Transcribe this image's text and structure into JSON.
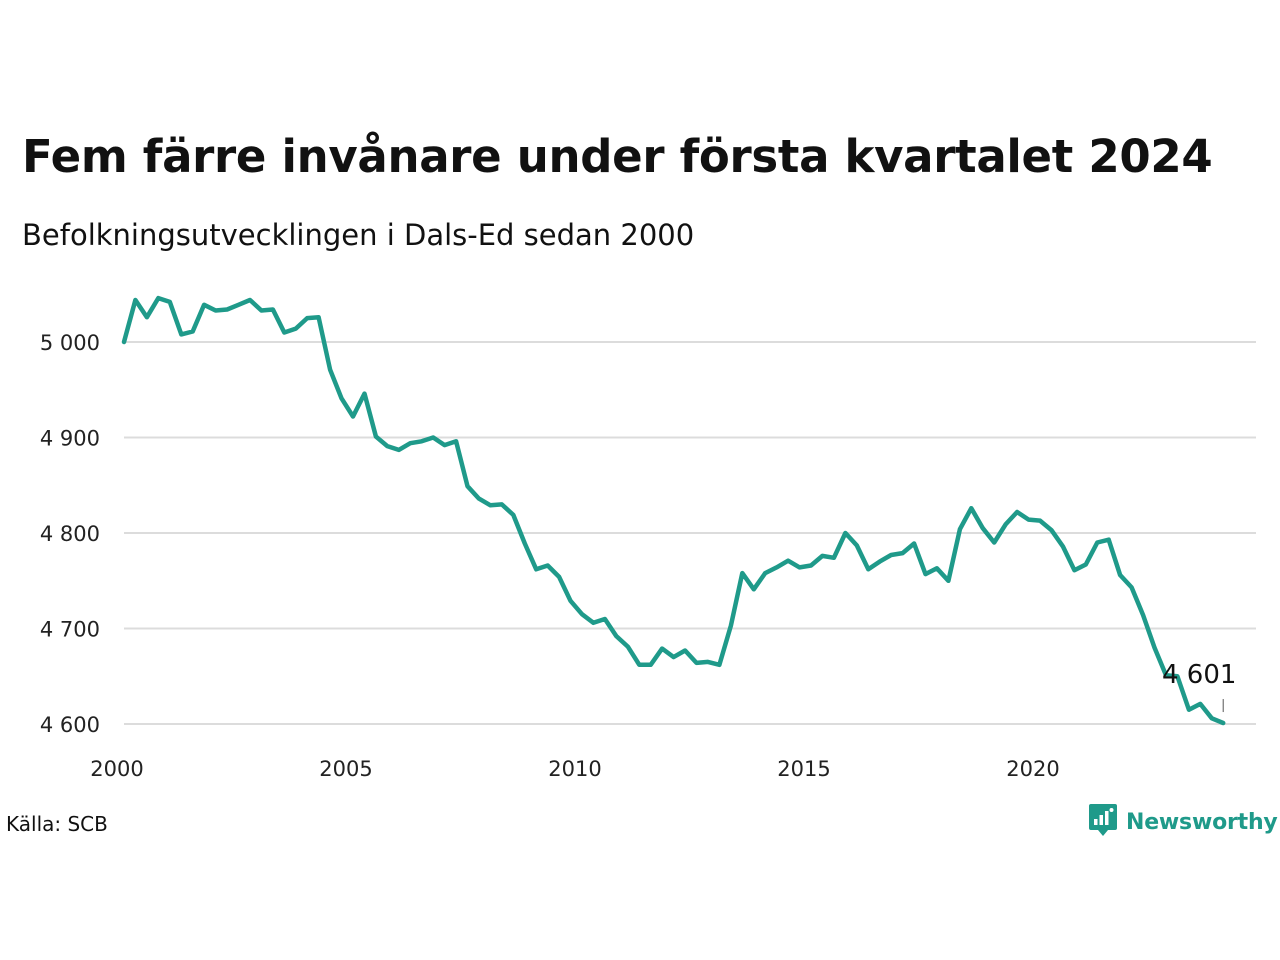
{
  "header": {
    "title": "Fem färre invånare under första kvartalet 2024",
    "subtitle": "Befolkningsutvecklingen i Dals-Ed sedan 2000"
  },
  "footer": {
    "source": "Källa: SCB",
    "brand": "Newsworthy",
    "brand_icon": "newsworthy-logo-icon"
  },
  "chart_data": {
    "type": "line",
    "line_color": "#1f9a8a",
    "grid": true,
    "ylim": [
      4600,
      5000
    ],
    "yticks": [
      5000,
      4900,
      4800,
      4700,
      4600
    ],
    "ytick_labels": [
      "5 000",
      "4 900",
      "4 800",
      "4 700",
      "4 600"
    ],
    "xticks": [
      2000,
      2005,
      2010,
      2015,
      2020
    ],
    "xtick_labels": [
      "2000",
      "2005",
      "2010",
      "2015",
      "2020"
    ],
    "series": [
      {
        "x": [
          2000.0,
          2000.25,
          2000.5,
          2000.75,
          2001.0,
          2001.25,
          2001.5,
          2001.75,
          2002.0,
          2002.25,
          2002.5,
          2002.75,
          2003.0,
          2003.25,
          2003.5,
          2003.75,
          2004.0,
          2004.25,
          2004.5,
          2004.75,
          2005.0,
          2005.25,
          2005.5,
          2005.75,
          2006.0,
          2006.25,
          2006.5,
          2006.75,
          2007.0,
          2007.25,
          2007.5,
          2007.75,
          2008.0,
          2008.25,
          2008.5,
          2008.75,
          2009.0,
          2009.25,
          2009.5,
          2009.75,
          2010.0,
          2010.25,
          2010.5,
          2010.75,
          2011.0,
          2011.25,
          2011.5,
          2011.75,
          2012.0,
          2012.25,
          2012.5,
          2012.75,
          2013.0,
          2013.25,
          2013.5,
          2013.75,
          2014.0,
          2014.25,
          2014.5,
          2014.75,
          2015.0,
          2015.25,
          2015.5,
          2015.75,
          2016.0,
          2016.25,
          2016.5,
          2016.75,
          2017.0,
          2017.25,
          2017.5,
          2017.75,
          2018.0,
          2018.25,
          2018.5,
          2018.75,
          2019.0,
          2019.25,
          2019.5,
          2019.75,
          2020.0,
          2020.25,
          2020.5,
          2020.75,
          2021.0,
          2021.25,
          2021.5,
          2021.75,
          2022.0,
          2022.25,
          2022.5,
          2022.75,
          2023.0,
          2023.25,
          2023.5,
          2023.75,
          2024.0
        ],
        "values": [
          5000,
          5044,
          5026,
          5046,
          5042,
          5008,
          5011,
          5039,
          5033,
          5034,
          5039,
          5044,
          5033,
          5034,
          5010,
          5014,
          5025,
          5026,
          4971,
          4941,
          4922,
          4946,
          4901,
          4891,
          4887,
          4894,
          4896,
          4900,
          4892,
          4896,
          4849,
          4836,
          4829,
          4830,
          4819,
          4789,
          4762,
          4766,
          4754,
          4729,
          4715,
          4706,
          4710,
          4692,
          4681,
          4662,
          4662,
          4679,
          4670,
          4677,
          4664,
          4665,
          4662,
          4703,
          4758,
          4741,
          4758,
          4764,
          4771,
          4764,
          4766,
          4776,
          4774,
          4800,
          4787,
          4762,
          4770,
          4777,
          4779,
          4789,
          4757,
          4763,
          4750,
          4804,
          4826,
          4805,
          4790,
          4809,
          4822,
          4814,
          4813,
          4803,
          4786,
          4761,
          4767,
          4790,
          4793,
          4756,
          4743,
          4714,
          4680,
          4651,
          4650,
          4615,
          4621,
          4606,
          4601
        ]
      }
    ],
    "annotation": {
      "x": 2024.0,
      "value": 4601,
      "label": "4 601"
    }
  }
}
